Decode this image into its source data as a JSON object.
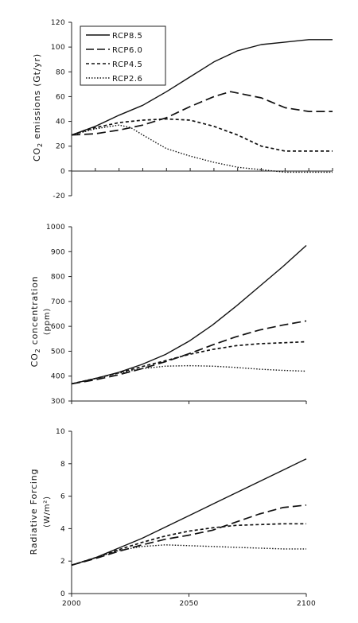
{
  "chart_data": [
    {
      "type": "line",
      "ylabel": "CO2 emissions (Gt/yr)",
      "ylabel_main": "CO",
      "ylabel_sub": "2",
      "ylabel_rest": " emissions (Gt/yr)",
      "ylim": [
        -20,
        120
      ],
      "yticks": [
        "-20",
        "0",
        "20",
        "40",
        "60",
        "80",
        "100",
        "120"
      ],
      "xlim": [
        2000,
        2110
      ],
      "legend": {
        "position": "top-left",
        "entries": [
          "RCP8.5",
          "RCP6.0",
          "RCP4.5",
          "RCP2.6"
        ]
      },
      "series": [
        {
          "name": "RCP8.5",
          "style": "solid",
          "x": [
            2000,
            2010,
            2020,
            2030,
            2040,
            2050,
            2060,
            2070,
            2080,
            2090,
            2100,
            2110
          ],
          "y": [
            29,
            36,
            45,
            53,
            64,
            76,
            88,
            97,
            102,
            104,
            106,
            106
          ]
        },
        {
          "name": "RCP6.0",
          "style": "dash-long",
          "x": [
            2000,
            2010,
            2020,
            2030,
            2040,
            2050,
            2060,
            2067,
            2080,
            2090,
            2100,
            2110
          ],
          "y": [
            29,
            30,
            33,
            37,
            43,
            52,
            60,
            64,
            59,
            51,
            48,
            48
          ]
        },
        {
          "name": "RCP4.5",
          "style": "dash-short",
          "x": [
            2000,
            2010,
            2020,
            2030,
            2040,
            2050,
            2060,
            2070,
            2080,
            2090,
            2100,
            2110
          ],
          "y": [
            29,
            35,
            39,
            41,
            42,
            41,
            36,
            29,
            20,
            16,
            16,
            16
          ]
        },
        {
          "name": "RCP2.6",
          "style": "dotted",
          "x": [
            2000,
            2010,
            2020,
            2025,
            2030,
            2040,
            2050,
            2060,
            2070,
            2080,
            2090,
            2100,
            2110
          ],
          "y": [
            29,
            34,
            37,
            35,
            29,
            18,
            12,
            7,
            3,
            1,
            -1,
            -1,
            -1
          ]
        }
      ]
    },
    {
      "type": "line",
      "ylabel": "CO2 concentration (ppm)",
      "ylabel_main": "CO",
      "ylabel_sub": "2",
      "ylabel_rest": " concentration",
      "ylabel_line2": "(ppm)",
      "ylim": [
        300,
        1000
      ],
      "yticks": [
        "300",
        "400",
        "500",
        "600",
        "700",
        "800",
        "900",
        "1000"
      ],
      "xlim": [
        2000,
        2100
      ],
      "series": [
        {
          "name": "RCP8.5",
          "style": "solid",
          "x": [
            2000,
            2010,
            2020,
            2030,
            2040,
            2050,
            2060,
            2070,
            2080,
            2090,
            2100
          ],
          "y": [
            369,
            390,
            415,
            447,
            487,
            540,
            605,
            680,
            760,
            840,
            925
          ]
        },
        {
          "name": "RCP6.0",
          "style": "dash-long",
          "x": [
            2000,
            2010,
            2020,
            2030,
            2040,
            2050,
            2060,
            2070,
            2080,
            2090,
            2100
          ],
          "y": [
            369,
            385,
            405,
            430,
            458,
            490,
            525,
            558,
            585,
            605,
            622
          ]
        },
        {
          "name": "RCP4.5",
          "style": "dash-short",
          "x": [
            2000,
            2010,
            2020,
            2030,
            2040,
            2050,
            2060,
            2070,
            2080,
            2090,
            2100
          ],
          "y": [
            369,
            390,
            413,
            438,
            462,
            487,
            507,
            522,
            530,
            534,
            538
          ]
        },
        {
          "name": "RCP2.6",
          "style": "dotted",
          "x": [
            2000,
            2010,
            2020,
            2030,
            2040,
            2050,
            2060,
            2070,
            2080,
            2090,
            2100
          ],
          "y": [
            369,
            390,
            412,
            430,
            440,
            442,
            440,
            435,
            428,
            423,
            420
          ]
        }
      ]
    },
    {
      "type": "line",
      "ylabel": "Radiative Forcing (W/m²)",
      "ylabel_line1": "Radiative Forcing",
      "ylabel_line2": "(W/m²)",
      "ylim": [
        0,
        10
      ],
      "yticks": [
        "0",
        "2",
        "4",
        "6",
        "8",
        "10"
      ],
      "xlim": [
        2000,
        2100
      ],
      "xticks": [
        "2000",
        "2050",
        "2100"
      ],
      "series": [
        {
          "name": "RCP8.5",
          "style": "solid",
          "x": [
            2000,
            2010,
            2020,
            2030,
            2040,
            2050,
            2060,
            2070,
            2080,
            2090,
            2100
          ],
          "y": [
            1.75,
            2.2,
            2.8,
            3.4,
            4.1,
            4.8,
            5.5,
            6.2,
            6.9,
            7.6,
            8.3
          ]
        },
        {
          "name": "RCP6.0",
          "style": "dash-long",
          "x": [
            2000,
            2010,
            2020,
            2030,
            2040,
            2050,
            2060,
            2070,
            2080,
            2090,
            2100
          ],
          "y": [
            1.75,
            2.15,
            2.6,
            3.0,
            3.35,
            3.6,
            3.9,
            4.4,
            4.9,
            5.3,
            5.45
          ]
        },
        {
          "name": "RCP4.5",
          "style": "dash-short",
          "x": [
            2000,
            2010,
            2020,
            2030,
            2040,
            2050,
            2060,
            2070,
            2080,
            2090,
            2100
          ],
          "y": [
            1.75,
            2.2,
            2.7,
            3.15,
            3.55,
            3.85,
            4.05,
            4.2,
            4.25,
            4.3,
            4.3
          ]
        },
        {
          "name": "RCP2.6",
          "style": "dotted",
          "x": [
            2000,
            2010,
            2020,
            2030,
            2040,
            2050,
            2060,
            2070,
            2080,
            2090,
            2100
          ],
          "y": [
            1.75,
            2.2,
            2.65,
            2.9,
            3.0,
            2.95,
            2.9,
            2.85,
            2.8,
            2.75,
            2.75
          ]
        }
      ]
    }
  ]
}
